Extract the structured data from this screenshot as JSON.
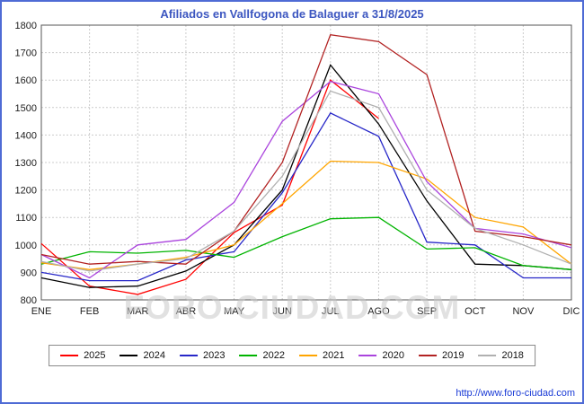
{
  "title": "Afiliados en Vallfogona de Balaguer a 31/8/2025",
  "watermark": "FORO-CIUDAD.COM",
  "footer": {
    "url": "http://www.foro-ciudad.com"
  },
  "chart_data": {
    "type": "line",
    "title": "Afiliados en Vallfogona de Balaguer a 31/8/2025",
    "xlabel": "",
    "ylabel": "",
    "ylim": [
      800,
      1800
    ],
    "ytick_step": 100,
    "grid": true,
    "legend_position": "bottom",
    "categories": [
      "ENE",
      "FEB",
      "MAR",
      "ABR",
      "MAY",
      "JUN",
      "JUL",
      "AGO",
      "SEP",
      "OCT",
      "NOV",
      "DIC"
    ],
    "series": [
      {
        "name": "2025",
        "color": "#ff0000",
        "values": [
          1005,
          850,
          820,
          875,
          1045,
          1145,
          1600,
          1460,
          null,
          null,
          null,
          null
        ]
      },
      {
        "name": "2024",
        "color": "#000000",
        "values": [
          880,
          845,
          850,
          905,
          1000,
          1200,
          1655,
          1440,
          1160,
          930,
          925,
          910
        ]
      },
      {
        "name": "2023",
        "color": "#2727c8",
        "values": [
          900,
          870,
          870,
          945,
          975,
          1190,
          1480,
          1395,
          1010,
          1000,
          880,
          880
        ]
      },
      {
        "name": "2022",
        "color": "#00b400",
        "values": [
          930,
          975,
          970,
          980,
          955,
          1030,
          1095,
          1100,
          985,
          990,
          925,
          910
        ]
      },
      {
        "name": "2021",
        "color": "#ffa500",
        "values": [
          935,
          910,
          930,
          955,
          1000,
          1150,
          1305,
          1300,
          1240,
          1100,
          1065,
          930
        ]
      },
      {
        "name": "2020",
        "color": "#aa44dd",
        "values": [
          965,
          880,
          1000,
          1020,
          1155,
          1450,
          1595,
          1550,
          1230,
          1060,
          1040,
          990
        ]
      },
      {
        "name": "2019",
        "color": "#b22222",
        "values": [
          965,
          930,
          940,
          930,
          1050,
          1300,
          1765,
          1740,
          1620,
          1050,
          1030,
          1000
        ]
      },
      {
        "name": "2018",
        "color": "#b0b0b0",
        "values": [
          940,
          905,
          930,
          950,
          1050,
          1250,
          1560,
          1500,
          1200,
          1060,
          1000,
          930
        ]
      }
    ]
  }
}
